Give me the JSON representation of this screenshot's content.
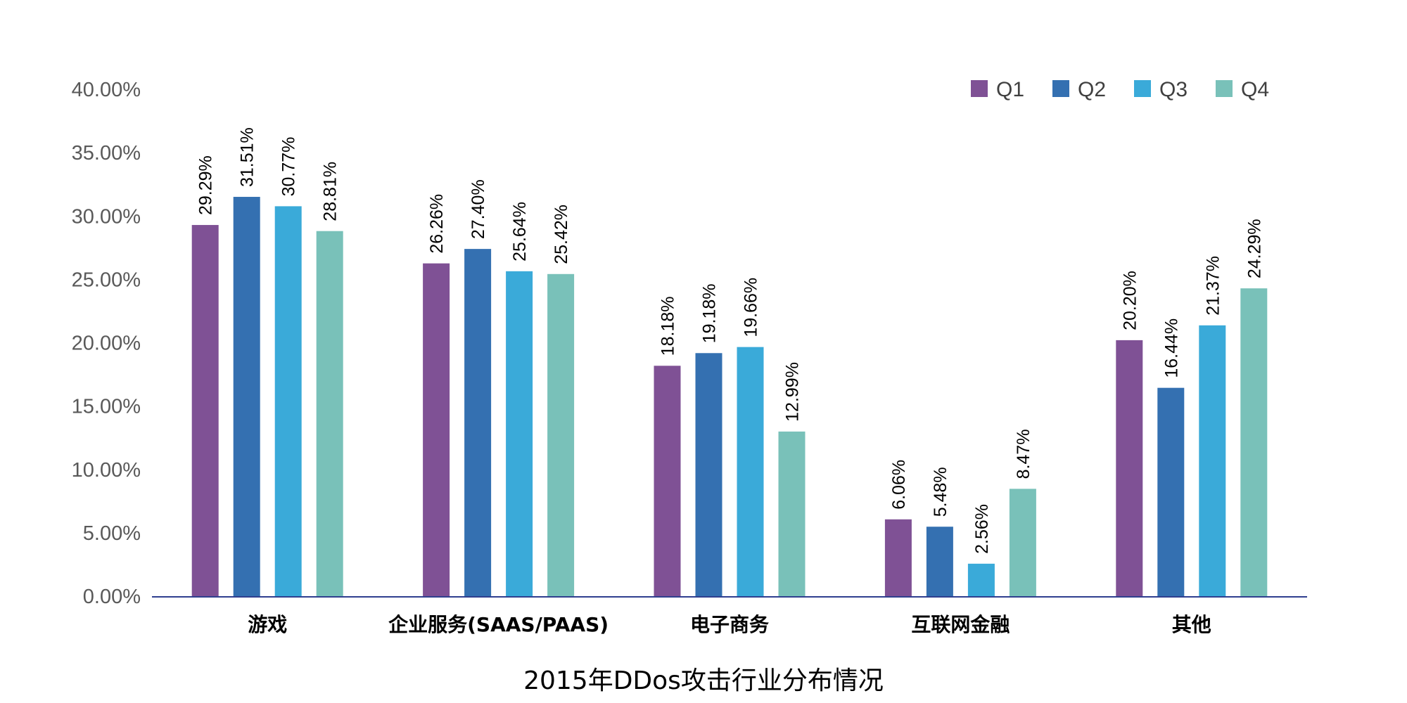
{
  "chart_data": {
    "type": "bar",
    "title": "2015年DDos攻击行业分布情况",
    "xlabel": "",
    "ylabel": "",
    "ylim": [
      0,
      40
    ],
    "yticks": [
      "0.00%",
      "5.00%",
      "10.00%",
      "15.00%",
      "20.00%",
      "25.00%",
      "30.00%",
      "35.00%",
      "40.00%"
    ],
    "categories": [
      "游戏",
      "企业服务(SAAS/PAAS)",
      "电子商务",
      "互联网金融",
      "其他"
    ],
    "series": [
      {
        "name": "Q1",
        "color": "#7f5195",
        "values": [
          29.29,
          26.26,
          18.18,
          6.06,
          20.2
        ],
        "labels": [
          "29.29%",
          "26.26%",
          "18.18%",
          "6.06%",
          "20.20%"
        ]
      },
      {
        "name": "Q2",
        "color": "#3470b1",
        "values": [
          31.51,
          27.4,
          19.18,
          5.48,
          16.44
        ],
        "labels": [
          "31.51%",
          "27.40%",
          "19.18%",
          "5.48%",
          "16.44%"
        ]
      },
      {
        "name": "Q3",
        "color": "#3aaad9",
        "values": [
          30.77,
          25.64,
          19.66,
          2.56,
          21.37
        ],
        "labels": [
          "30.77%",
          "25.64%",
          "19.66%",
          "2.56%",
          "21.37%"
        ]
      },
      {
        "name": "Q4",
        "color": "#79c1b9",
        "values": [
          28.81,
          25.42,
          12.99,
          8.47,
          24.29
        ],
        "labels": [
          "28.81%",
          "25.42%",
          "12.99%",
          "8.47%",
          "24.29%"
        ]
      }
    ],
    "legend_position": "top-right",
    "grid": false,
    "axis_color": "#2f3f8f"
  }
}
